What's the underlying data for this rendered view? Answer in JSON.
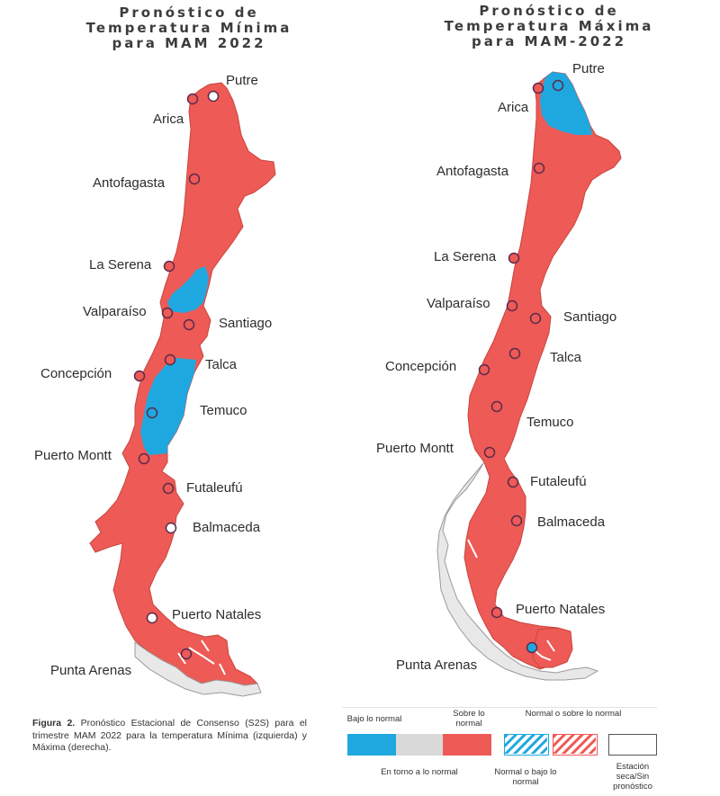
{
  "maps": [
    {
      "title": [
        "Pronóstico de",
        "Temperatura Mínima",
        "para MAM 2022"
      ],
      "cities": [
        {
          "name": "Putre",
          "class": "white"
        },
        {
          "name": "Arica",
          "class": "red"
        },
        {
          "name": "Antofagasta",
          "class": "red"
        },
        {
          "name": "La Serena",
          "class": "red"
        },
        {
          "name": "Valparaíso",
          "class": "red"
        },
        {
          "name": "Santiago",
          "class": "red"
        },
        {
          "name": "Talca",
          "class": "red"
        },
        {
          "name": "Concepción",
          "class": "red"
        },
        {
          "name": "Temuco",
          "class": "blue"
        },
        {
          "name": "Puerto Montt",
          "class": "red"
        },
        {
          "name": "Futaleufú",
          "class": "red"
        },
        {
          "name": "Balmaceda",
          "class": "white"
        },
        {
          "name": "Puerto Natales",
          "class": "white"
        },
        {
          "name": "Punta Arenas",
          "class": "red"
        }
      ]
    },
    {
      "title": [
        "Pronóstico de",
        "Temperatura Máxima",
        "para MAM-2022"
      ],
      "cities": [
        {
          "name": "Putre",
          "class": "blue"
        },
        {
          "name": "Arica",
          "class": "red"
        },
        {
          "name": "Antofagasta",
          "class": "red"
        },
        {
          "name": "La Serena",
          "class": "red"
        },
        {
          "name": "Valparaíso",
          "class": "red"
        },
        {
          "name": "Santiago",
          "class": "red"
        },
        {
          "name": "Talca",
          "class": "red"
        },
        {
          "name": "Concepción",
          "class": "red"
        },
        {
          "name": "Temuco",
          "class": "red"
        },
        {
          "name": "Puerto Montt",
          "class": "red"
        },
        {
          "name": "Futaleufú",
          "class": "red"
        },
        {
          "name": "Balmaceda",
          "class": "red"
        },
        {
          "name": "Puerto Natales",
          "class": "red"
        },
        {
          "name": "Punta Arenas",
          "class": "blue"
        }
      ]
    }
  ],
  "caption": {
    "figure_label": "Figura 2.",
    "text": "Pronóstico Estacional de Consenso (S2S) para el trimestre MAM 2022 para la temperatura Mínima (izquierda) y Máxima (derecha)."
  },
  "legend": {
    "items": [
      {
        "label": "Bajo lo normal",
        "color": "#1fa8df"
      },
      {
        "label": "En torno a lo normal",
        "color": "#d9d9d9"
      },
      {
        "label": "Sobre lo normal",
        "color": "#ee5a55"
      },
      {
        "label": "Normal o bajo lo normal",
        "color": "#1fa8df"
      },
      {
        "label": "Normal o sobre lo normal",
        "color": "#ee5a55"
      },
      {
        "label": "Estación seca/Sin pronóstico",
        "color": "#ffffff"
      }
    ]
  },
  "colors": {
    "above_normal": "#ee5a55",
    "below_normal": "#1fa8df",
    "near_normal": "#d9d9d9",
    "outline": "#c74640"
  }
}
